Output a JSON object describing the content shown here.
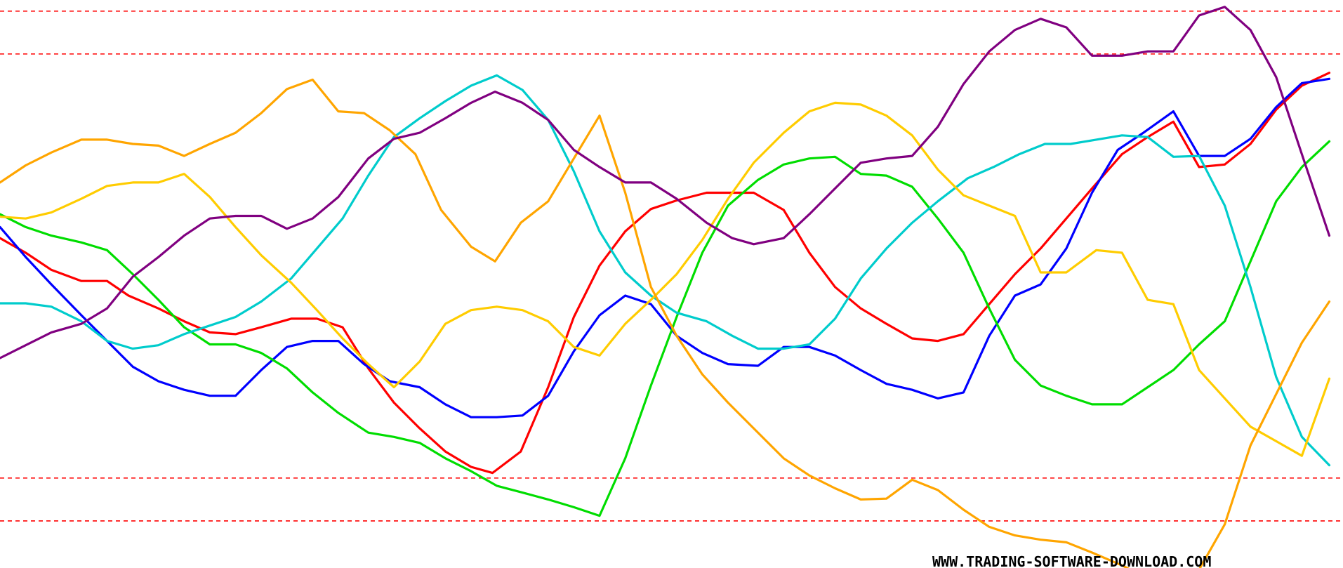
{
  "chart_data": {
    "type": "line",
    "ylim": [
      0,
      663
    ],
    "xlim": [
      0,
      1568
    ],
    "grid": false,
    "legend": "none",
    "reference_lines": [
      {
        "y": 13,
        "color": "#ff0000",
        "style": "dashed"
      },
      {
        "y": 63,
        "color": "#ff0000",
        "style": "dashed"
      },
      {
        "y": 558,
        "color": "#ff0000",
        "style": "dashed"
      },
      {
        "y": 608,
        "color": "#ff0000",
        "style": "dashed"
      }
    ],
    "series": [
      {
        "color": "#ff0000",
        "x": [
          0,
          30,
          60,
          95,
          125,
          150,
          185,
          215,
          245,
          275,
          305,
          340,
          370,
          400,
          430,
          460,
          490,
          520,
          550,
          575,
          608,
          640,
          670,
          700,
          730,
          760,
          790,
          825,
          855,
          880,
          915,
          945,
          975,
          1005,
          1035,
          1065,
          1095,
          1125,
          1155,
          1185,
          1215,
          1245,
          1275,
          1310,
          1340,
          1370,
          1400,
          1430,
          1460,
          1490,
          1520,
          1552
        ],
        "y": [
          278,
          295,
          315,
          328,
          328,
          345,
          360,
          375,
          388,
          390,
          382,
          372,
          372,
          382,
          430,
          470,
          500,
          527,
          545,
          552,
          527,
          452,
          370,
          310,
          270,
          244,
          234,
          225,
          225,
          225,
          245,
          295,
          335,
          360,
          378,
          395,
          398,
          390,
          355,
          320,
          290,
          255,
          220,
          180,
          160,
          142,
          195,
          192,
          168,
          128,
          100,
          85
        ]
      },
      {
        "color": "#0000ff",
        "x": [
          0,
          30,
          60,
          95,
          125,
          155,
          185,
          215,
          245,
          275,
          305,
          335,
          365,
          395,
          425,
          455,
          490,
          520,
          550,
          580,
          610,
          640,
          670,
          700,
          730,
          760,
          790,
          820,
          850,
          885,
          915,
          945,
          975,
          1005,
          1035,
          1065,
          1095,
          1125,
          1155,
          1185,
          1215,
          1245,
          1275,
          1305,
          1335,
          1370,
          1400,
          1430,
          1460,
          1490,
          1520,
          1552
        ],
        "y": [
          265,
          300,
          332,
          368,
          398,
          428,
          445,
          455,
          462,
          462,
          432,
          405,
          398,
          398,
          425,
          445,
          452,
          472,
          487,
          487,
          485,
          462,
          410,
          368,
          345,
          355,
          392,
          412,
          425,
          427,
          405,
          405,
          415,
          432,
          448,
          455,
          465,
          458,
          392,
          345,
          332,
          290,
          225,
          175,
          155,
          130,
          182,
          182,
          162,
          125,
          97,
          92
        ]
      },
      {
        "color": "#00dd00",
        "x": [
          0,
          30,
          60,
          95,
          125,
          155,
          185,
          215,
          245,
          275,
          305,
          335,
          365,
          395,
          430,
          460,
          490,
          520,
          550,
          580,
          610,
          640,
          670,
          700,
          730,
          760,
          790,
          820,
          850,
          885,
          915,
          945,
          975,
          1005,
          1035,
          1065,
          1095,
          1125,
          1155,
          1185,
          1215,
          1245,
          1275,
          1310,
          1340,
          1370,
          1400,
          1430,
          1460,
          1490,
          1520,
          1552
        ],
        "y": [
          250,
          265,
          275,
          283,
          292,
          320,
          350,
          382,
          402,
          402,
          412,
          430,
          458,
          482,
          505,
          510,
          517,
          535,
          550,
          567,
          575,
          583,
          592,
          602,
          535,
          450,
          370,
          295,
          240,
          210,
          192,
          185,
          183,
          203,
          205,
          218,
          255,
          295,
          360,
          420,
          450,
          462,
          472,
          472,
          452,
          432,
          402,
          375,
          305,
          235,
          195,
          165
        ]
      },
      {
        "color": "#00cccc",
        "x": [
          0,
          30,
          60,
          95,
          125,
          155,
          185,
          215,
          245,
          275,
          305,
          340,
          370,
          400,
          430,
          460,
          490,
          520,
          550,
          580,
          610,
          640,
          670,
          700,
          730,
          760,
          790,
          825,
          855,
          885,
          915,
          945,
          975,
          1005,
          1035,
          1065,
          1095,
          1130,
          1160,
          1190,
          1220,
          1250,
          1280,
          1310,
          1340,
          1370,
          1400,
          1430,
          1460,
          1490,
          1520,
          1552
        ],
        "y": [
          354,
          354,
          358,
          375,
          398,
          407,
          403,
          390,
          380,
          370,
          352,
          325,
          290,
          255,
          205,
          160,
          138,
          118,
          100,
          88,
          105,
          140,
          200,
          270,
          318,
          345,
          365,
          375,
          392,
          407,
          407,
          402,
          372,
          325,
          290,
          260,
          235,
          208,
          195,
          180,
          168,
          168,
          163,
          158,
          160,
          183,
          182,
          240,
          335,
          440,
          510,
          543
        ]
      },
      {
        "color": "#ffcc00",
        "x": [
          0,
          30,
          60,
          95,
          125,
          155,
          185,
          215,
          245,
          275,
          305,
          340,
          370,
          400,
          430,
          460,
          490,
          520,
          550,
          580,
          610,
          640,
          670,
          700,
          730,
          760,
          790,
          820,
          850,
          880,
          915,
          945,
          975,
          1005,
          1035,
          1065,
          1095,
          1125,
          1155,
          1185,
          1215,
          1245,
          1280,
          1310,
          1340,
          1370,
          1400,
          1430,
          1460,
          1490,
          1520,
          1552
        ],
        "y": [
          253,
          255,
          248,
          232,
          217,
          213,
          213,
          203,
          230,
          265,
          298,
          330,
          362,
          395,
          425,
          452,
          422,
          378,
          362,
          358,
          362,
          375,
          405,
          415,
          378,
          350,
          320,
          280,
          232,
          190,
          155,
          130,
          120,
          122,
          135,
          158,
          198,
          228,
          240,
          252,
          318,
          318,
          292,
          295,
          350,
          355,
          432,
          465,
          498,
          515,
          532,
          442
        ]
      },
      {
        "color": "#ffa500",
        "x": [
          0,
          30,
          60,
          95,
          125,
          155,
          185,
          215,
          245,
          275,
          305,
          335,
          365,
          395,
          425,
          455,
          485,
          515,
          550,
          578,
          608,
          640,
          670,
          700,
          730,
          760,
          790,
          820,
          850,
          880,
          915,
          945,
          975,
          1005,
          1035,
          1065,
          1095,
          1125,
          1155,
          1185,
          1215,
          1245,
          1275,
          1310,
          1340,
          1370,
          1400,
          1430,
          1460,
          1490,
          1520,
          1552
        ],
        "y": [
          213,
          193,
          178,
          163,
          163,
          168,
          170,
          182,
          168,
          155,
          132,
          104,
          93,
          130,
          132,
          152,
          180,
          245,
          288,
          305,
          260,
          235,
          185,
          135,
          225,
          335,
          392,
          437,
          470,
          500,
          535,
          555,
          570,
          583,
          582,
          560,
          572,
          595,
          615,
          625,
          630,
          633,
          645,
          660,
          675,
          690,
          665,
          612,
          520,
          460,
          400,
          352
        ]
      },
      {
        "color": "#800080",
        "x": [
          0,
          30,
          60,
          95,
          125,
          155,
          185,
          215,
          245,
          275,
          305,
          335,
          365,
          395,
          430,
          460,
          490,
          520,
          550,
          578,
          610,
          640,
          670,
          700,
          730,
          760,
          790,
          825,
          855,
          880,
          915,
          945,
          975,
          1005,
          1035,
          1065,
          1095,
          1125,
          1155,
          1185,
          1215,
          1245,
          1275,
          1310,
          1340,
          1370,
          1400,
          1430,
          1460,
          1490,
          1520,
          1552
        ],
        "y": [
          418,
          403,
          388,
          378,
          360,
          323,
          300,
          275,
          255,
          252,
          252,
          267,
          255,
          230,
          185,
          162,
          155,
          138,
          120,
          107,
          120,
          140,
          175,
          195,
          213,
          213,
          232,
          260,
          278,
          285,
          278,
          250,
          220,
          190,
          185,
          182,
          148,
          98,
          60,
          35,
          22,
          32,
          65,
          65,
          60,
          60,
          18,
          8,
          35,
          90,
          180,
          275
        ]
      }
    ]
  },
  "watermark": {
    "text": "WWW.TRADING-SOFTWARE-DOWNLOAD.COM"
  }
}
